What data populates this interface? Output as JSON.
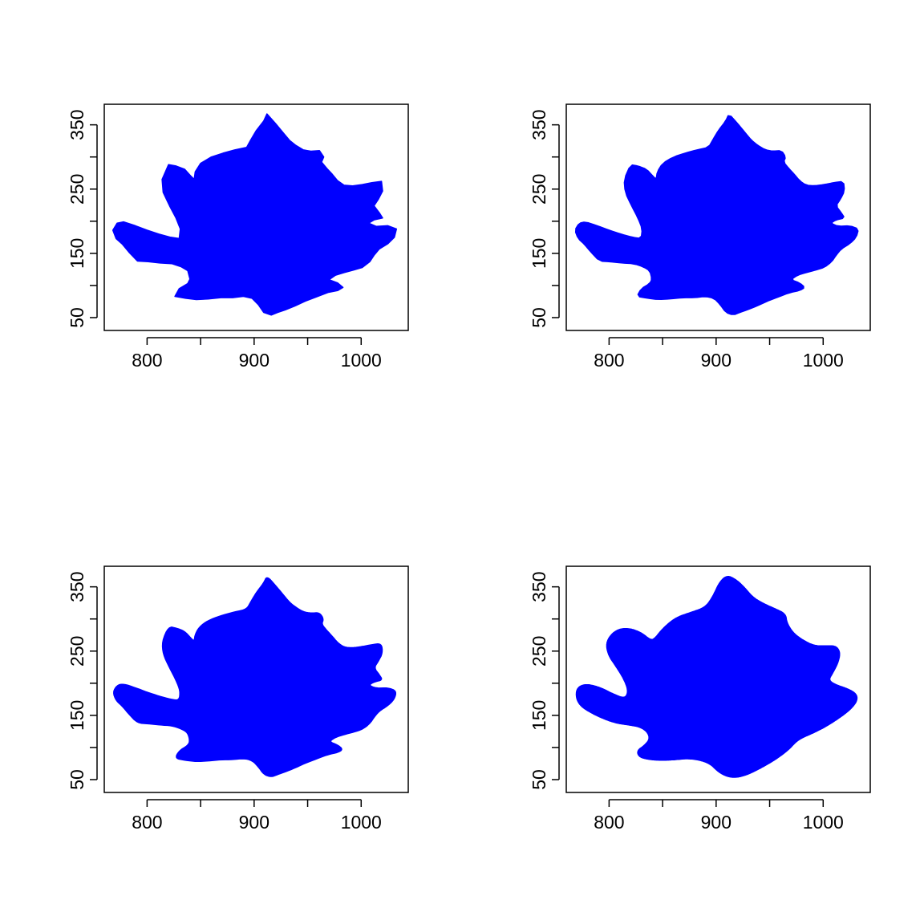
{
  "chart_data": [
    {
      "type": "area",
      "title": "",
      "xlabel": "",
      "ylabel": "",
      "xlim": [
        760,
        1044
      ],
      "ylim": [
        30,
        382
      ],
      "x_ticks": [
        800,
        850,
        900,
        950,
        1000
      ],
      "x_tick_labels": [
        "800",
        "",
        "900",
        "",
        "1000"
      ],
      "y_ticks": [
        50,
        100,
        150,
        200,
        250,
        300,
        350
      ],
      "y_tick_labels": [
        "50",
        "",
        "150",
        "",
        "250",
        "",
        "350"
      ],
      "grid": false,
      "fill": "#0000ff",
      "smoothing": "none",
      "series": [
        {
          "x": [
            912,
            920,
            927,
            933,
            939,
            946,
            953,
            961,
            965,
            963,
            968,
            973,
            978,
            984,
            992,
            1001,
            1010,
            1019,
            1020,
            1016,
            1012,
            1017,
            1020,
            1012,
            1007,
            1014,
            1025,
            1033,
            1031,
            1025,
            1017,
            1012,
            1008,
            1001,
            993,
            984,
            976,
            970,
            978,
            983,
            978,
            969,
            958,
            947,
            938,
            929,
            922,
            916,
            909,
            904,
            898,
            890,
            880,
            869,
            857,
            846,
            836,
            826,
            830,
            838,
            840,
            838,
            832,
            823,
            812,
            801,
            791,
            783,
            777,
            771,
            768,
            772,
            778,
            789,
            800,
            811,
            822,
            830,
            831,
            827,
            821,
            815,
            814,
            820,
            827,
            835,
            841,
            844,
            845,
            850,
            860,
            871,
            882,
            893,
            897,
            902,
            909
          ],
          "y": [
            367,
            352,
            338,
            326,
            318,
            311,
            309,
            310,
            300,
            292,
            282,
            273,
            263,
            256,
            255,
            257,
            260,
            262,
            247,
            234,
            224,
            213,
            205,
            202,
            197,
            192,
            193,
            188,
            175,
            165,
            157,
            147,
            137,
            128,
            124,
            120,
            116,
            109,
            104,
            97,
            92,
            89,
            82,
            75,
            68,
            62,
            58,
            54,
            58,
            70,
            80,
            83,
            81,
            81,
            79,
            78,
            80,
            83,
            95,
            103,
            110,
            123,
            129,
            134,
            135,
            137,
            138,
            152,
            164,
            173,
            186,
            197,
            199,
            193,
            186,
            180,
            175,
            173,
            188,
            205,
            224,
            245,
            265,
            288,
            286,
            281,
            270,
            265,
            277,
            290,
            300,
            306,
            311,
            315,
            327,
            341,
            356
          ]
        }
      ]
    },
    {
      "type": "area",
      "title": "",
      "xlabel": "",
      "ylabel": "",
      "xlim": [
        760,
        1044
      ],
      "ylim": [
        30,
        382
      ],
      "x_ticks": [
        800,
        850,
        900,
        950,
        1000
      ],
      "x_tick_labels": [
        "800",
        "",
        "900",
        "",
        "1000"
      ],
      "y_ticks": [
        50,
        100,
        150,
        200,
        250,
        300,
        350
      ],
      "y_tick_labels": [
        "50",
        "",
        "150",
        "",
        "250",
        "",
        "350"
      ],
      "grid": false,
      "fill": "#0000ff",
      "smoothing": "light",
      "series": [
        {
          "x": [
            912,
            920,
            927,
            933,
            939,
            946,
            953,
            961,
            965,
            963,
            968,
            973,
            978,
            984,
            992,
            1001,
            1010,
            1019,
            1020,
            1016,
            1012,
            1017,
            1020,
            1012,
            1007,
            1014,
            1025,
            1033,
            1031,
            1025,
            1017,
            1012,
            1008,
            1001,
            993,
            984,
            976,
            970,
            978,
            983,
            978,
            969,
            958,
            947,
            938,
            929,
            922,
            916,
            909,
            904,
            898,
            890,
            880,
            869,
            857,
            846,
            836,
            826,
            830,
            838,
            840,
            838,
            832,
            823,
            812,
            801,
            791,
            783,
            777,
            771,
            768,
            772,
            778,
            789,
            800,
            811,
            822,
            830,
            831,
            827,
            821,
            815,
            814,
            820,
            827,
            835,
            841,
            844,
            845,
            850,
            860,
            871,
            882,
            893,
            897,
            902,
            909
          ],
          "y": [
            367,
            352,
            338,
            326,
            318,
            311,
            309,
            310,
            300,
            292,
            282,
            273,
            263,
            256,
            255,
            257,
            260,
            262,
            247,
            234,
            224,
            213,
            205,
            202,
            197,
            192,
            193,
            188,
            175,
            165,
            157,
            147,
            137,
            128,
            124,
            120,
            116,
            109,
            104,
            97,
            92,
            89,
            82,
            75,
            68,
            62,
            58,
            54,
            58,
            70,
            80,
            83,
            81,
            81,
            79,
            78,
            80,
            83,
            95,
            103,
            110,
            123,
            129,
            134,
            135,
            137,
            138,
            152,
            164,
            173,
            186,
            197,
            199,
            193,
            186,
            180,
            175,
            173,
            188,
            205,
            224,
            245,
            265,
            288,
            286,
            281,
            270,
            265,
            277,
            290,
            300,
            306,
            311,
            315,
            327,
            341,
            356
          ]
        }
      ]
    },
    {
      "type": "area",
      "title": "",
      "xlabel": "",
      "ylabel": "",
      "xlim": [
        760,
        1044
      ],
      "ylim": [
        30,
        382
      ],
      "x_ticks": [
        800,
        850,
        900,
        950,
        1000
      ],
      "x_tick_labels": [
        "800",
        "",
        "900",
        "",
        "1000"
      ],
      "y_ticks": [
        50,
        100,
        150,
        200,
        250,
        300,
        350
      ],
      "y_tick_labels": [
        "50",
        "",
        "150",
        "",
        "250",
        "",
        "350"
      ],
      "grid": false,
      "fill": "#0000ff",
      "smoothing": "medium",
      "series": [
        {
          "x": [
            912,
            920,
            927,
            933,
            939,
            946,
            953,
            961,
            965,
            963,
            968,
            973,
            978,
            984,
            992,
            1001,
            1010,
            1019,
            1020,
            1016,
            1012,
            1017,
            1020,
            1012,
            1007,
            1014,
            1025,
            1033,
            1031,
            1025,
            1017,
            1012,
            1008,
            1001,
            993,
            984,
            976,
            970,
            978,
            983,
            978,
            969,
            958,
            947,
            938,
            929,
            922,
            916,
            909,
            904,
            898,
            890,
            880,
            869,
            857,
            846,
            836,
            826,
            830,
            838,
            840,
            838,
            832,
            823,
            812,
            801,
            791,
            783,
            777,
            771,
            768,
            772,
            778,
            789,
            800,
            811,
            822,
            830,
            831,
            827,
            821,
            815,
            814,
            820,
            827,
            835,
            841,
            844,
            845,
            850,
            860,
            871,
            882,
            893,
            897,
            902,
            909
          ],
          "y": [
            367,
            352,
            338,
            326,
            318,
            311,
            309,
            310,
            300,
            292,
            282,
            273,
            263,
            256,
            255,
            257,
            260,
            262,
            247,
            234,
            224,
            213,
            205,
            202,
            197,
            192,
            193,
            188,
            175,
            165,
            157,
            147,
            137,
            128,
            124,
            120,
            116,
            109,
            104,
            97,
            92,
            89,
            82,
            75,
            68,
            62,
            58,
            54,
            58,
            70,
            80,
            83,
            81,
            81,
            79,
            78,
            80,
            83,
            95,
            103,
            110,
            123,
            129,
            134,
            135,
            137,
            138,
            152,
            164,
            173,
            186,
            197,
            199,
            193,
            186,
            180,
            175,
            173,
            188,
            205,
            224,
            245,
            265,
            288,
            286,
            281,
            270,
            265,
            277,
            290,
            300,
            306,
            311,
            315,
            327,
            341,
            356
          ]
        }
      ]
    },
    {
      "type": "area",
      "title": "",
      "xlabel": "",
      "ylabel": "",
      "xlim": [
        760,
        1044
      ],
      "ylim": [
        30,
        382
      ],
      "x_ticks": [
        800,
        850,
        900,
        950,
        1000
      ],
      "x_tick_labels": [
        "800",
        "",
        "900",
        "",
        "1000"
      ],
      "y_ticks": [
        50,
        100,
        150,
        200,
        250,
        300,
        350
      ],
      "y_tick_labels": [
        "50",
        "",
        "150",
        "",
        "250",
        "",
        "350"
      ],
      "grid": false,
      "fill": "#0000ff",
      "smoothing": "heavy",
      "series": [
        {
          "x": [
            910,
            918,
            926,
            934,
            944,
            955,
            965,
            966,
            972,
            981,
            992,
            1004,
            1012,
            1016,
            1014,
            1009,
            1005,
            1011,
            1022,
            1031,
            1032,
            1026,
            1016,
            1002,
            990,
            980,
            974,
            968,
            957,
            946,
            937,
            928,
            918,
            910,
            902,
            895,
            886,
            874,
            862,
            850,
            838,
            828,
            826,
            833,
            838,
            836,
            829,
            819,
            806,
            793,
            782,
            773,
            769,
            770,
            778,
            791,
            804,
            815,
            818,
            814,
            807,
            799,
            797,
            806,
            818,
            830,
            838,
            842,
            850,
            862,
            876,
            890,
            897,
            903
          ],
          "y": [
            368,
            362,
            350,
            334,
            324,
            316,
            308,
            294,
            278,
            267,
            258,
            258,
            258,
            248,
            232,
            216,
            205,
            198,
            192,
            184,
            173,
            160,
            147,
            132,
            122,
            115,
            108,
            97,
            83,
            72,
            64,
            57,
            53,
            55,
            62,
            74,
            80,
            83,
            81,
            80,
            81,
            85,
            95,
            103,
            113,
            124,
            132,
            135,
            138,
            146,
            155,
            165,
            178,
            193,
            199,
            194,
            183,
            176,
            188,
            206,
            225,
            244,
            265,
            283,
            286,
            279,
            268,
            268,
            285,
            302,
            310,
            318,
            335,
            357
          ]
        }
      ]
    }
  ]
}
